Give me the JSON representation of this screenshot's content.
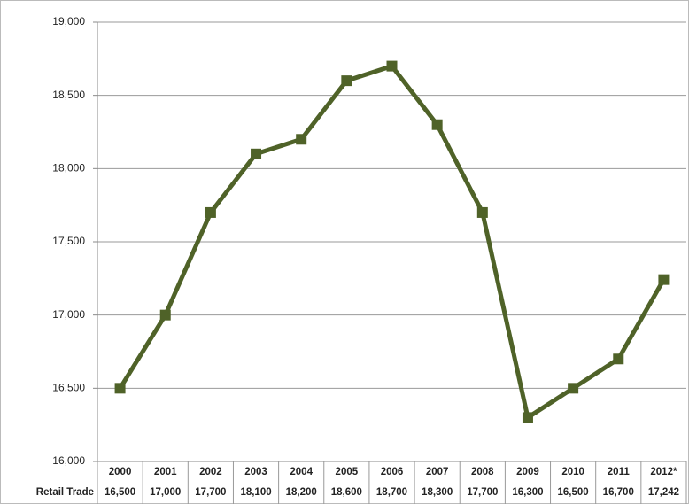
{
  "chart_data": {
    "type": "line",
    "categories": [
      "2000",
      "2001",
      "2002",
      "2003",
      "2004",
      "2005",
      "2006",
      "2007",
      "2008",
      "2009",
      "2010",
      "2011",
      "2012*"
    ],
    "series": [
      {
        "name": "Retail Trade",
        "color": "#4f6228",
        "values": [
          16500,
          17000,
          17700,
          18100,
          18200,
          18600,
          18700,
          18300,
          17700,
          16300,
          16500,
          16700,
          17242
        ],
        "value_labels": [
          "16,500",
          "17,000",
          "17,700",
          "18,100",
          "18,200",
          "18,600",
          "18,700",
          "18,300",
          "17,700",
          "16,300",
          "16,500",
          "16,700",
          "17,242"
        ]
      }
    ],
    "ylim": [
      16000,
      19000
    ],
    "yticks": [
      {
        "value": 16000,
        "label": "16,000"
      },
      {
        "value": 16500,
        "label": "16,500"
      },
      {
        "value": 17000,
        "label": "17,000"
      },
      {
        "value": 17500,
        "label": "17,500"
      },
      {
        "value": 18000,
        "label": "18,000"
      },
      {
        "value": 18500,
        "label": "18,500"
      },
      {
        "value": 19000,
        "label": "19,000"
      }
    ],
    "grid": true
  }
}
